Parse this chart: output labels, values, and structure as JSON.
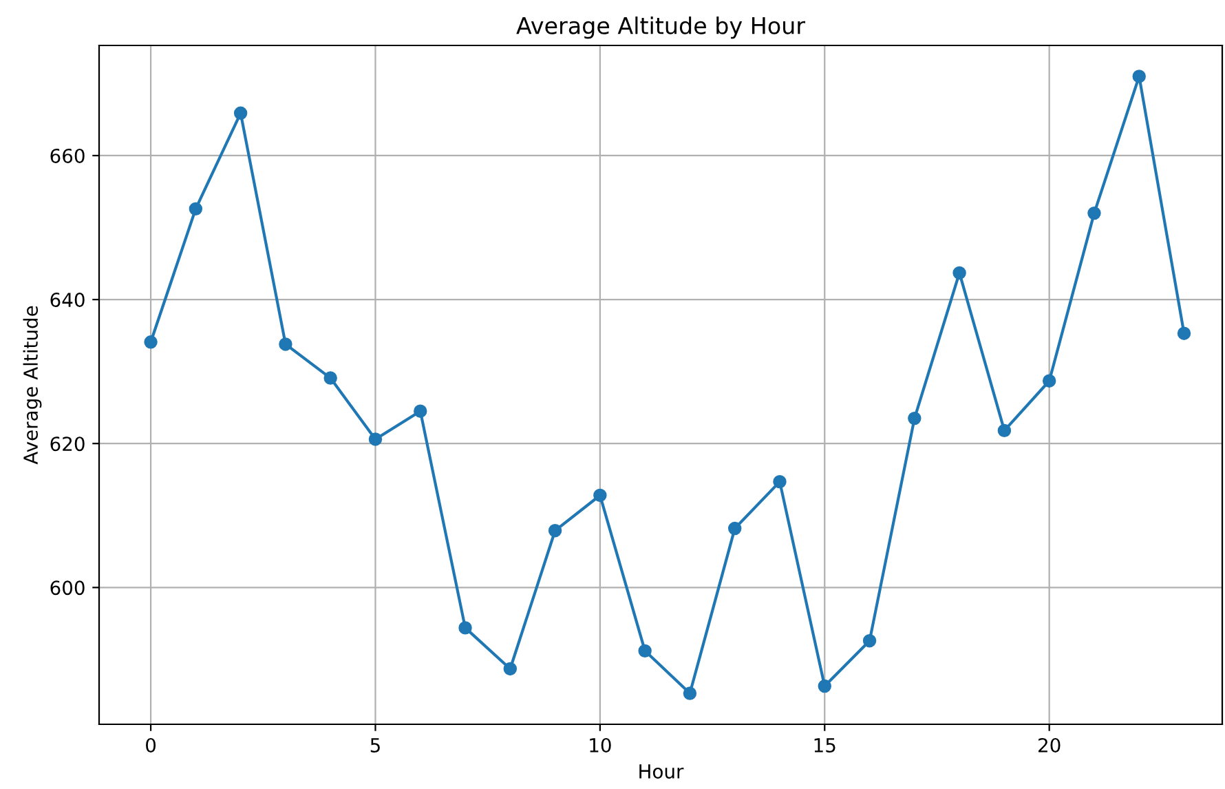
{
  "chart_data": {
    "type": "line",
    "title": "Average Altitude by Hour",
    "xlabel": "Hour",
    "ylabel": "Average Altitude",
    "x": [
      0,
      1,
      2,
      3,
      4,
      5,
      6,
      7,
      8,
      9,
      10,
      11,
      12,
      13,
      14,
      15,
      16,
      17,
      18,
      19,
      20,
      21,
      22,
      23
    ],
    "series": [
      {
        "color": "#1f77b4",
        "values": [
          634.1,
          652.6,
          665.9,
          633.8,
          629.1,
          620.6,
          624.5,
          594.4,
          588.7,
          607.9,
          612.8,
          591.2,
          585.3,
          608.2,
          614.7,
          586.3,
          592.6,
          623.5,
          643.7,
          621.8,
          628.7,
          652.0,
          671.0,
          635.3
        ]
      }
    ],
    "xlim": [
      -1.15,
      23.85
    ],
    "xticks": [
      0,
      5,
      10,
      15,
      20
    ],
    "ylim": [
      581.0,
      675.3
    ],
    "yticks": [
      600,
      620,
      640,
      660
    ],
    "grid": true,
    "marker": "circle",
    "line_style": "solid"
  }
}
